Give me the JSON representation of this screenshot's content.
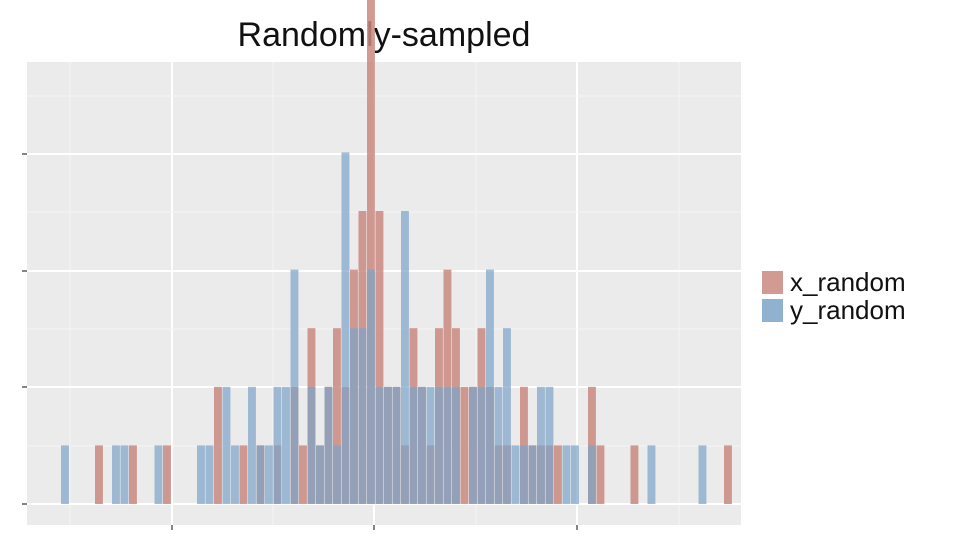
{
  "chart_data": {
    "type": "histogram",
    "title": "Randomly-sampled",
    "xlabel": "",
    "ylabel": "",
    "x_tick_labels": [],
    "y_tick_labels": [],
    "xlim": [
      0,
      84
    ],
    "ylim": [
      0,
      9.8
    ],
    "bin_width": 1,
    "grid": true,
    "legend": "right",
    "series": [
      {
        "name": "x_random",
        "color": "#c98a80",
        "bins": [
          {
            "x": 8,
            "count": 1
          },
          {
            "x": 12,
            "count": 1
          },
          {
            "x": 16,
            "count": 1
          },
          {
            "x": 22,
            "count": 2
          },
          {
            "x": 25,
            "count": 1
          },
          {
            "x": 27,
            "count": 1
          },
          {
            "x": 29,
            "count": 1
          },
          {
            "x": 31,
            "count": 2
          },
          {
            "x": 32,
            "count": 1
          },
          {
            "x": 33,
            "count": 3
          },
          {
            "x": 34,
            "count": 1
          },
          {
            "x": 35,
            "count": 2
          },
          {
            "x": 36,
            "count": 3
          },
          {
            "x": 37,
            "count": 2
          },
          {
            "x": 38,
            "count": 4
          },
          {
            "x": 39,
            "count": 5
          },
          {
            "x": 40,
            "count": 9
          },
          {
            "x": 41,
            "count": 5
          },
          {
            "x": 42,
            "count": 2
          },
          {
            "x": 43,
            "count": 2
          },
          {
            "x": 44,
            "count": 1
          },
          {
            "x": 45,
            "count": 3
          },
          {
            "x": 46,
            "count": 2
          },
          {
            "x": 47,
            "count": 1
          },
          {
            "x": 48,
            "count": 3
          },
          {
            "x": 49,
            "count": 4
          },
          {
            "x": 50,
            "count": 3
          },
          {
            "x": 51,
            "count": 2
          },
          {
            "x": 52,
            "count": 2
          },
          {
            "x": 53,
            "count": 3
          },
          {
            "x": 54,
            "count": 2
          },
          {
            "x": 55,
            "count": 1
          },
          {
            "x": 56,
            "count": 1
          },
          {
            "x": 58,
            "count": 2
          },
          {
            "x": 59,
            "count": 1
          },
          {
            "x": 60,
            "count": 1
          },
          {
            "x": 61,
            "count": 1
          },
          {
            "x": 62,
            "count": 1
          },
          {
            "x": 66,
            "count": 2
          },
          {
            "x": 67,
            "count": 1
          },
          {
            "x": 71,
            "count": 1
          },
          {
            "x": 82,
            "count": 1
          }
        ]
      },
      {
        "name": "y_random",
        "color": "#7ea3c8",
        "bins": [
          {
            "x": 4,
            "count": 1
          },
          {
            "x": 10,
            "count": 1
          },
          {
            "x": 11,
            "count": 1
          },
          {
            "x": 15,
            "count": 1
          },
          {
            "x": 20,
            "count": 1
          },
          {
            "x": 21,
            "count": 1
          },
          {
            "x": 23,
            "count": 2
          },
          {
            "x": 24,
            "count": 1
          },
          {
            "x": 26,
            "count": 2
          },
          {
            "x": 27,
            "count": 1
          },
          {
            "x": 28,
            "count": 1
          },
          {
            "x": 29,
            "count": 2
          },
          {
            "x": 30,
            "count": 2
          },
          {
            "x": 31,
            "count": 4
          },
          {
            "x": 33,
            "count": 2
          },
          {
            "x": 34,
            "count": 1
          },
          {
            "x": 35,
            "count": 2
          },
          {
            "x": 36,
            "count": 1
          },
          {
            "x": 37,
            "count": 6
          },
          {
            "x": 38,
            "count": 3
          },
          {
            "x": 39,
            "count": 3
          },
          {
            "x": 40,
            "count": 4
          },
          {
            "x": 41,
            "count": 2
          },
          {
            "x": 42,
            "count": 2
          },
          {
            "x": 43,
            "count": 2
          },
          {
            "x": 44,
            "count": 5
          },
          {
            "x": 45,
            "count": 2
          },
          {
            "x": 46,
            "count": 2
          },
          {
            "x": 47,
            "count": 2
          },
          {
            "x": 48,
            "count": 2
          },
          {
            "x": 49,
            "count": 2
          },
          {
            "x": 50,
            "count": 2
          },
          {
            "x": 52,
            "count": 2
          },
          {
            "x": 53,
            "count": 2
          },
          {
            "x": 54,
            "count": 4
          },
          {
            "x": 55,
            "count": 2
          },
          {
            "x": 56,
            "count": 3
          },
          {
            "x": 57,
            "count": 1
          },
          {
            "x": 58,
            "count": 1
          },
          {
            "x": 59,
            "count": 1
          },
          {
            "x": 60,
            "count": 2
          },
          {
            "x": 61,
            "count": 2
          },
          {
            "x": 63,
            "count": 1
          },
          {
            "x": 64,
            "count": 1
          },
          {
            "x": 66,
            "count": 1
          },
          {
            "x": 73,
            "count": 1
          },
          {
            "x": 79,
            "count": 1
          }
        ]
      }
    ]
  },
  "style": {
    "panel_bg": "#ebebeb",
    "grid_major": "#ffffff",
    "grid_minor": "#f5f5f5",
    "overlap_color": "#8c8ba4"
  }
}
